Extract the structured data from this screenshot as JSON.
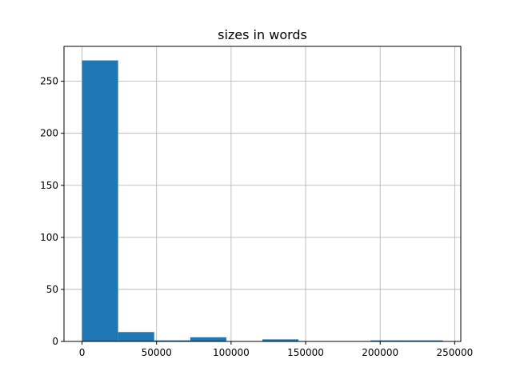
{
  "chart_data": {
    "type": "bar",
    "subtype": "histogram",
    "title": "sizes in words",
    "xlabel": "",
    "ylabel": "",
    "bin_edges": [
      0,
      24200,
      48400,
      72600,
      96800,
      121000,
      145200,
      169400,
      193600,
      217800,
      242000
    ],
    "values": [
      270,
      9,
      1,
      4,
      0,
      2,
      0,
      0,
      1,
      1
    ],
    "xlim": [
      -12100,
      254100
    ],
    "ylim": [
      0,
      283.5
    ],
    "xticks": [
      0,
      50000,
      100000,
      150000,
      200000,
      250000
    ],
    "xtick_labels": [
      "0",
      "50000",
      "100000",
      "150000",
      "200000",
      "250000"
    ],
    "yticks": [
      0,
      50,
      100,
      150,
      200,
      250
    ],
    "ytick_labels": [
      "0",
      "50",
      "100",
      "150",
      "200",
      "250"
    ],
    "grid": true,
    "colors": {
      "bar": "#1f77b4",
      "grid": "#b0b0b0"
    }
  }
}
